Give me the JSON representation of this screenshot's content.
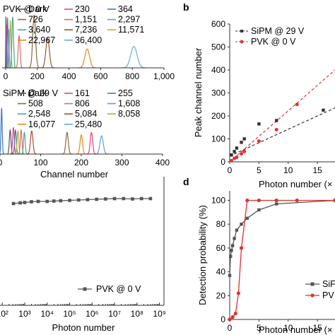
{
  "panel_labels": {
    "b": "b",
    "d": "d"
  },
  "chart_data": [
    {
      "id": "a_top",
      "type": "line",
      "legend_title": "PVK @ 0 V",
      "legend_labels": [
        "Dark",
        "230",
        "364",
        "726",
        "1,151",
        "2,297",
        "3,640",
        "7,236",
        "11,571",
        "22,967",
        "36,400"
      ],
      "legend_colors": [
        "#555555",
        "#e0457b",
        "#3a78c8",
        "#8a6b3c",
        "#e06a6a",
        "#5aa0d8",
        "#4aa88a",
        "#a0522d",
        "#b8b030",
        "#e08a1a",
        "#6aaccc"
      ],
      "peaks": [
        {
          "x": 2,
          "h": 0.95,
          "w": 1.5,
          "color": "#555555"
        },
        {
          "x": 6,
          "h": 0.8,
          "w": 2,
          "color": "#e0457b"
        },
        {
          "x": 12,
          "h": 0.92,
          "w": 3,
          "color": "#3a78c8"
        },
        {
          "x": 20,
          "h": 0.72,
          "w": 3,
          "color": "#6aaccc"
        },
        {
          "x": 30,
          "h": 0.88,
          "w": 4,
          "color": "#b8b030"
        },
        {
          "x": 45,
          "h": 0.95,
          "w": 5,
          "color": "#4aa88a"
        },
        {
          "x": 85,
          "h": 0.6,
          "w": 6,
          "color": "#e06a6a"
        },
        {
          "x": 180,
          "h": 0.98,
          "w": 9,
          "color": "#8a6b3c"
        },
        {
          "x": 265,
          "h": 0.55,
          "w": 11,
          "color": "#a0522d"
        },
        {
          "x": 515,
          "h": 0.35,
          "w": 15,
          "color": "#e08a1a"
        },
        {
          "x": 810,
          "h": 0.4,
          "w": 20,
          "color": "#6aaccc"
        }
      ],
      "xlim": [
        0,
        1000
      ],
      "xticks": [
        "0",
        "200",
        "400",
        "600",
        "800",
        "1,000"
      ]
    },
    {
      "id": "a_bottom",
      "type": "line",
      "legend_title": "SiPM @ 29 V",
      "legend_labels": [
        "Dark",
        "161",
        "255",
        "508",
        "806",
        "1,608",
        "2,548",
        "5,084",
        "8,058",
        "16,077",
        "25,480"
      ],
      "legend_colors": [
        "#555555",
        "#e0457b",
        "#3a78c8",
        "#8a6b3c",
        "#e06a6a",
        "#5aa0d8",
        "#4aa88a",
        "#a0522d",
        "#b8b030",
        "#e08a1a",
        "#6aaccc"
      ],
      "peaks": [
        {
          "x": 4,
          "h": 0.95,
          "w": 1.5,
          "color": "#3a78c8"
        },
        {
          "x": 25,
          "h": 0.5,
          "w": 2,
          "color": "#555555"
        },
        {
          "x": 33,
          "h": 0.55,
          "w": 2,
          "color": "#e0457b"
        },
        {
          "x": 38,
          "h": 0.5,
          "w": 2,
          "color": "#3a78c8"
        },
        {
          "x": 44,
          "h": 0.48,
          "w": 2,
          "color": "#b8b030"
        },
        {
          "x": 52,
          "h": 0.5,
          "w": 2,
          "color": "#e06a6a"
        },
        {
          "x": 60,
          "h": 0.45,
          "w": 2,
          "color": "#4aa88a"
        },
        {
          "x": 78,
          "h": 0.48,
          "w": 3,
          "color": "#a0522d"
        },
        {
          "x": 165,
          "h": 0.45,
          "w": 3,
          "color": "#8a6b3c"
        },
        {
          "x": 200,
          "h": 0.4,
          "w": 3,
          "color": "#e08a1a"
        },
        {
          "x": 225,
          "h": 0.45,
          "w": 3,
          "color": "#e0457b"
        },
        {
          "x": 250,
          "h": 0.38,
          "w": 4,
          "color": "#5aa0d8"
        }
      ],
      "xlim": [
        0,
        400
      ],
      "xticks": [
        "0",
        "100",
        "200",
        "300",
        "400"
      ],
      "xlabel": "Channel number"
    },
    {
      "id": "b",
      "type": "scatter",
      "xlabel": "Photon number (×",
      "ylabel": "Peak channel number",
      "xticks": [
        "0",
        "5",
        "10",
        "15"
      ],
      "xlim": [
        0,
        18
      ],
      "ylim": [
        0,
        600
      ],
      "yticks": [
        "0",
        "100",
        "200",
        "300",
        "400",
        "500",
        "600"
      ],
      "series": [
        {
          "name": "SiPM @ 29 V",
          "color": "#333333",
          "marker": "square",
          "x": [
            0.3,
            0.8,
            1.2,
            2.0,
            2.5,
            5.0,
            8.0,
            16.0
          ],
          "y": [
            30,
            45,
            60,
            85,
            100,
            165,
            180,
            225
          ]
        },
        {
          "name": "PVK @ 0 V",
          "color": "#e03030",
          "marker": "circle",
          "x": [
            0.3,
            0.8,
            1.2,
            2.0,
            2.5,
            5.0,
            8.0,
            11.5
          ],
          "y": [
            5,
            15,
            20,
            35,
            45,
            90,
            140,
            250
          ]
        }
      ],
      "fits": [
        {
          "color": "#333333",
          "x": [
            0,
            18
          ],
          "y": [
            25,
            235
          ]
        },
        {
          "color": "#e03030",
          "x": [
            0,
            18
          ],
          "y": [
            0,
            400
          ]
        }
      ]
    },
    {
      "id": "c",
      "type": "line",
      "xlabel": "Photon number",
      "xticks": [
        "10²",
        "10³",
        "10⁴",
        "10⁵",
        "10⁶",
        "10⁷",
        "10⁸",
        "10⁹"
      ],
      "legend": "PVK @ 0 V",
      "series": [
        {
          "name": "PVK @ 0 V",
          "color": "#555555",
          "x": [
            2.5,
            2.8,
            3.0,
            3.3,
            3.6,
            4.0,
            4.3,
            4.6,
            5.0,
            5.4,
            5.8,
            6.2,
            6.6,
            7.0,
            7.4,
            7.8,
            8.2,
            8.6
          ],
          "y": [
            99.0,
            99.2,
            99.3,
            99.5,
            99.6,
            99.6,
            99.7,
            99.8,
            99.9,
            100.0,
            100.1,
            100.2,
            100.3,
            100.4,
            100.4,
            100.3,
            100.4,
            100.4
          ]
        }
      ]
    },
    {
      "id": "d",
      "type": "line",
      "xlabel": "Photon number (×",
      "ylabel": "Detection probability (%)",
      "xticks": [
        "0",
        "5",
        "10",
        "15"
      ],
      "yticks": [
        "0",
        "20",
        "40",
        "60",
        "80",
        "100"
      ],
      "xlim": [
        0,
        18
      ],
      "ylim": [
        0,
        108
      ],
      "legend_labels": [
        "SiF",
        "PV"
      ],
      "series": [
        {
          "name": "SiF",
          "color": "#555555",
          "marker": "square",
          "x": [
            0,
            0.15,
            0.3,
            0.5,
            0.8,
            1.2,
            2.0,
            3.0,
            5.0,
            8.0,
            18.0
          ],
          "y": [
            37,
            53,
            58,
            62,
            68,
            75,
            80,
            85,
            92,
            97,
            100
          ]
        },
        {
          "name": "PV",
          "color": "#e03030",
          "marker": "circle",
          "x": [
            0,
            0.5,
            1.0,
            1.5,
            2.0,
            3.0,
            5.0,
            8.0,
            11.5,
            18.0
          ],
          "y": [
            0,
            2,
            5,
            22,
            60,
            100,
            100,
            100,
            100,
            100
          ]
        }
      ]
    }
  ]
}
